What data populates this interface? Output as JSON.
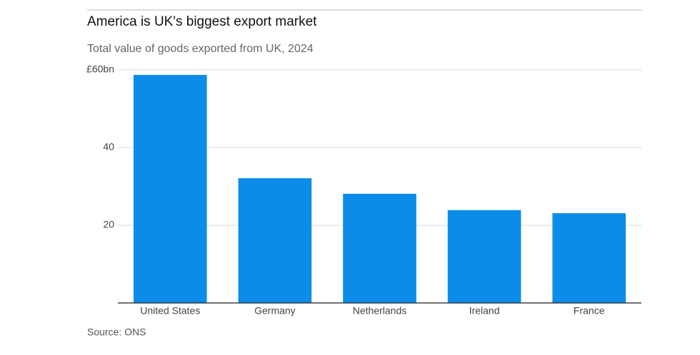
{
  "chart_data": {
    "type": "bar",
    "title": "America is UK's biggest export market",
    "subtitle": "Total value of goods exported from UK, 2024",
    "categories": [
      "United States",
      "Germany",
      "Netherlands",
      "Ireland",
      "France"
    ],
    "values": [
      58.7,
      32.1,
      28.1,
      23.9,
      23.1
    ],
    "color": "#0b8ce8",
    "ylim": [
      0,
      60
    ],
    "yticks": [
      20,
      40,
      {
        "value": 60,
        "label": "£60bn"
      }
    ],
    "grid": true,
    "source": "Source: ONS"
  }
}
